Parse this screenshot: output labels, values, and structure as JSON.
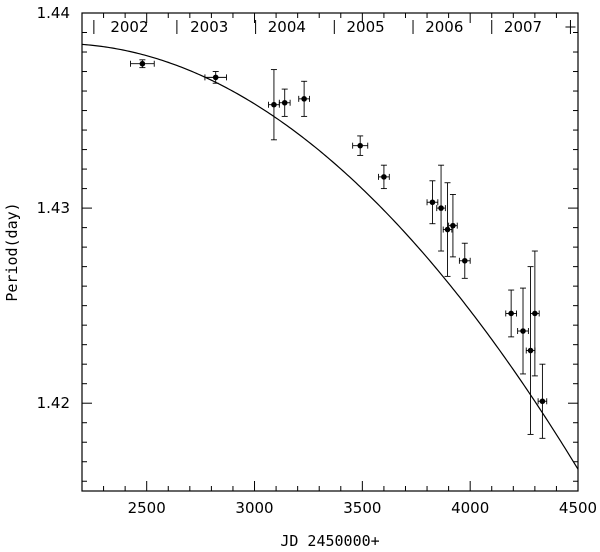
{
  "chart_data": {
    "type": "scatter",
    "xlabel": "JD 2450000+",
    "ylabel": "Period(day)",
    "xlim": [
      2200,
      4500
    ],
    "ylim": [
      1.4155,
      1.44
    ],
    "x_ticks": [
      2500,
      3000,
      3500,
      4000,
      4500
    ],
    "x_tick_labels": [
      "2500",
      "3000",
      "3500",
      "4000",
      "4500"
    ],
    "y_ticks": [
      1.42,
      1.43,
      1.44
    ],
    "y_tick_labels": [
      "1.42",
      "1.43",
      "1.44"
    ],
    "grid": false,
    "year_labels": [
      {
        "label": "2002",
        "x": 2420
      },
      {
        "label": "2003",
        "x": 2790
      },
      {
        "label": "2004",
        "x": 3150
      },
      {
        "label": "2005",
        "x": 3515
      },
      {
        "label": "2006",
        "x": 3880
      },
      {
        "label": "2007",
        "x": 4245
      }
    ],
    "year_boundaries": [
      2255,
      2640,
      3005,
      3370,
      3735,
      4100,
      4465
    ],
    "series": [
      {
        "points": [
          {
            "x": 2480,
            "y": 1.4374,
            "xerr": 55,
            "yerr": 0.0002
          },
          {
            "x": 2820,
            "y": 1.4367,
            "xerr": 50,
            "yerr": 0.0003
          },
          {
            "x": 3090,
            "y": 1.4353,
            "xerr": 25,
            "yerr": 0.0018
          },
          {
            "x": 3140,
            "y": 1.4354,
            "xerr": 25,
            "yerr": 0.0007
          },
          {
            "x": 3230,
            "y": 1.4356,
            "xerr": 25,
            "yerr": 0.0009
          },
          {
            "x": 3490,
            "y": 1.4332,
            "xerr": 35,
            "yerr": 0.0005
          },
          {
            "x": 3600,
            "y": 1.4316,
            "xerr": 25,
            "yerr": 0.0006
          },
          {
            "x": 3825,
            "y": 1.4303,
            "xerr": 25,
            "yerr": 0.0011
          },
          {
            "x": 3865,
            "y": 1.43,
            "xerr": 20,
            "yerr": 0.0022
          },
          {
            "x": 3895,
            "y": 1.4289,
            "xerr": 20,
            "yerr": 0.0024
          },
          {
            "x": 3920,
            "y": 1.4291,
            "xerr": 20,
            "yerr": 0.0016
          },
          {
            "x": 3975,
            "y": 1.4273,
            "xerr": 25,
            "yerr": 0.0009
          },
          {
            "x": 4190,
            "y": 1.4246,
            "xerr": 25,
            "yerr": 0.0012
          },
          {
            "x": 4245,
            "y": 1.4237,
            "xerr": 25,
            "yerr": 0.0022
          },
          {
            "x": 4280,
            "y": 1.4227,
            "xerr": 20,
            "yerr": 0.0043
          },
          {
            "x": 4300,
            "y": 1.4246,
            "xerr": 20,
            "yerr": 0.0032
          },
          {
            "x": 4335,
            "y": 1.4201,
            "xerr": 20,
            "yerr": 0.0019
          }
        ]
      }
    ],
    "fit_curve": {
      "type": "quadratic",
      "x0": 2200,
      "coefficients": [
        1.43839,
        -7.95e-07,
        -3.77e-09
      ]
    }
  }
}
